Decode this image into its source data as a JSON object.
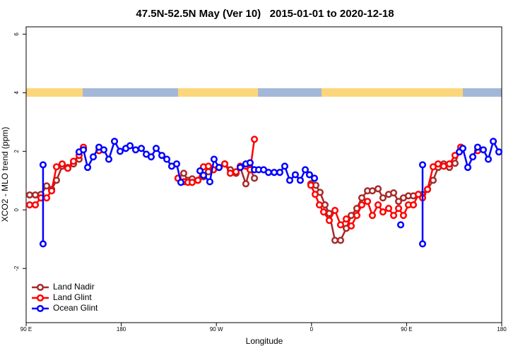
{
  "chart_data": {
    "type": "line",
    "title": "47.5N-52.5N May (Ver 10)   2015-01-01 to 2020-12-18",
    "xlabel": "Longitude",
    "ylabel": "XCO2 - MLO trend (ppm)",
    "xlim": [
      90,
      540
    ],
    "ylim": [
      -3.85,
      6.25
    ],
    "xticks": [
      {
        "value": 90,
        "label": "90 E"
      },
      180,
      {
        "value": 270,
        "label": "90 W"
      },
      {
        "value": 360,
        "label": "0"
      },
      {
        "value": 450,
        "label": "90 E"
      },
      {
        "value": 540,
        "label": "180"
      }
    ],
    "yticks": [
      -2,
      0,
      2,
      4,
      6
    ],
    "legend": "bottom-left",
    "series": [
      {
        "name": "Land Nadir",
        "color": "#a52a2a",
        "x": [
          93.3,
          98.7,
          104.0,
          109.4,
          114.1,
          118.7,
          124.1,
          129.4,
          134.8,
          140.1,
          144.2,
          null,
          233.7,
          239.1,
          243.1,
          247.1,
          252.5,
          257.8,
          262.5,
          267.2,
          272.5,
          277.9,
          283.2,
          288.6,
          292.6,
          297.9,
          301.9,
          306.0,
          null,
          359.4,
          364.1,
          368.1,
          372.8,
          376.8,
          382.2,
          387.5,
          392.9,
          397.6,
          402.9,
          407.6,
          413.0,
          417.6,
          423.0,
          427.6,
          433.0,
          437.7,
          442.4,
          447.0,
          451.7,
          456.4,
          461.1,
          465.1,
          469.8,
          475.1,
          479.8,
          485.1,
          490.5,
          495.8,
          501.2
        ],
        "values": [
          0.51,
          0.51,
          0.53,
          0.82,
          0.7,
          1.01,
          1.49,
          1.45,
          1.57,
          1.73,
          2.1,
          null,
          1.08,
          1.25,
          1.01,
          1.06,
          1.01,
          1.13,
          1.3,
          1.37,
          1.45,
          1.57,
          1.37,
          1.25,
          1.45,
          0.89,
          1.42,
          1.08,
          null,
          0.89,
          0.84,
          0.6,
          0.17,
          -0.12,
          -1.04,
          -1.04,
          -0.63,
          -0.19,
          0.05,
          0.41,
          0.65,
          0.65,
          0.72,
          0.41,
          0.53,
          0.58,
          0.29,
          0.41,
          0.48,
          0.48,
          0.53,
          0.53,
          0.7,
          1.01,
          1.45,
          1.57,
          1.45,
          1.59,
          2.14
        ]
      },
      {
        "name": "Land Glint",
        "color": "#ff0000",
        "x": [
          93.3,
          98.7,
          104.0,
          109.4,
          114.1,
          118.7,
          124.1,
          129.4,
          134.8,
          140.1,
          144.2,
          null,
          158.9,
          null,
          233.7,
          239.1,
          243.1,
          247.1,
          252.5,
          257.8,
          262.5,
          267.2,
          272.5,
          277.9,
          283.2,
          288.6,
          292.6,
          297.9,
          301.9,
          306.0,
          null,
          359.4,
          363.5,
          367.5,
          371.5,
          376.8,
          382.2,
          387.5,
          392.9,
          397.6,
          402.9,
          407.6,
          413.0,
          417.6,
          423.0,
          427.6,
          433.0,
          437.7,
          442.4,
          447.0,
          451.7,
          456.4,
          461.1,
          465.1,
          469.8,
          475.1,
          479.8,
          485.1,
          490.5,
          495.8,
          501.2,
          null,
          517.2
        ],
        "values": [
          0.17,
          0.17,
          0.41,
          0.41,
          0.65,
          1.47,
          1.57,
          1.42,
          1.66,
          1.86,
          2.14,
          null,
          2.02,
          null,
          1.08,
          0.96,
          0.94,
          0.94,
          1.01,
          1.47,
          1.49,
          1.37,
          1.45,
          1.57,
          1.25,
          1.3,
          1.49,
          1.49,
          1.37,
          2.41,
          null,
          0.84,
          0.53,
          0.17,
          -0.07,
          -0.36,
          -0.02,
          -0.51,
          -0.31,
          -0.55,
          -0.19,
          0.17,
          0.29,
          -0.19,
          0.17,
          -0.07,
          0.05,
          -0.19,
          0.05,
          -0.19,
          0.17,
          0.17,
          0.53,
          0.41,
          0.7,
          1.47,
          1.57,
          1.49,
          1.57,
          1.86,
          2.14,
          null,
          2.02
        ]
      },
      {
        "name": "Ocean Glint",
        "color": "#0000ff",
        "x": [
          106.0,
          106.0,
          null,
          140.1,
          144.2,
          148.2,
          153.5,
          158.9,
          163.5,
          168.2,
          173.6,
          178.9,
          184.3,
          188.3,
          193.6,
          199.0,
          203.7,
          208.3,
          213.0,
          218.4,
          223.1,
          227.7,
          232.4,
          236.4,
          null,
          254.5,
          257.8,
          263.8,
          267.8,
          272.5,
          null,
          292.6,
          297.9,
          301.9,
          306.0,
          310.0,
          314.7,
          319.3,
          324.7,
          330.0,
          334.7,
          339.4,
          344.7,
          349.4,
          354.1,
          358.1,
          362.8,
          null,
          444.4,
          null,
          465.1,
          465.1,
          null,
          499.9,
          503.2,
          507.9,
          512.6,
          517.2,
          522.6,
          527.3,
          532.0,
          537.3
        ],
        "values": [
          -1.16,
          1.54,
          null,
          1.98,
          2.05,
          1.45,
          1.81,
          2.14,
          2.05,
          1.73,
          2.34,
          2.0,
          2.1,
          2.19,
          2.05,
          2.1,
          1.9,
          1.81,
          2.1,
          1.86,
          1.73,
          1.49,
          1.57,
          0.94,
          null,
          1.33,
          1.18,
          0.96,
          1.73,
          1.45,
          null,
          1.45,
          1.57,
          1.61,
          1.37,
          1.37,
          1.37,
          1.28,
          1.28,
          1.28,
          1.49,
          1.01,
          1.2,
          1.01,
          1.37,
          1.2,
          1.08,
          null,
          -0.51,
          null,
          -1.16,
          1.54,
          null,
          1.98,
          2.1,
          1.45,
          1.81,
          2.14,
          2.05,
          1.73,
          2.34,
          1.98
        ]
      }
    ]
  }
}
